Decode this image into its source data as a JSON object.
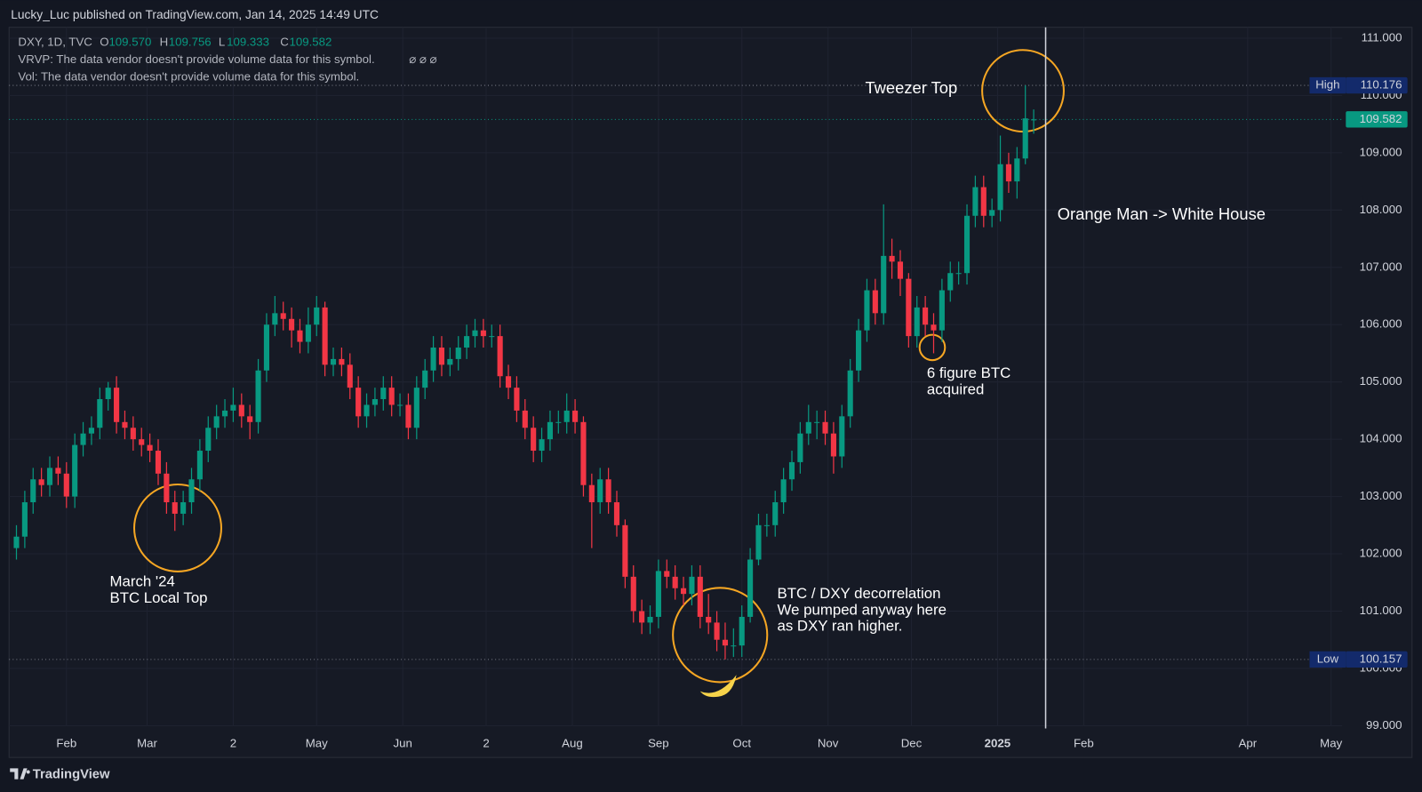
{
  "page": {
    "header": "Lucky_Luc published on TradingView.com, Jan 14, 2025 14:49 UTC",
    "brand": "TradingView"
  },
  "chart_data": {
    "type": "candlestick",
    "legend": {
      "symbol": "DXY, 1D, TVC",
      "o_label": "O",
      "o": "109.570",
      "h_label": "H",
      "h": "109.756",
      "l_label": "L",
      "l": "109.333",
      "c_label": "C",
      "c": "109.582",
      "vrvp": "VRVP: The data vendor doesn't provide volume data for this symbol.",
      "vrvp_icons": "⌀ ⌀ ⌀",
      "vol": "Vol: The data vendor doesn't provide volume data for this symbol."
    },
    "annotations": [
      "Tweezer Top",
      "Orange Man -> White House",
      "6 figure BTC",
      "acquired",
      "March '24",
      "BTC Local Top",
      "BTC / DXY decorrelation",
      "We pumped anyway here",
      "as DXY ran higher."
    ],
    "up_color": "#089981",
    "down_color": "#f23645",
    "x": [
      13,
      16,
      19,
      22,
      25,
      28,
      31,
      34,
      37,
      40,
      43,
      46,
      49,
      52,
      55,
      58,
      61,
      64,
      67,
      70,
      73,
      76,
      79,
      82,
      85,
      88,
      91,
      94,
      97,
      100,
      103,
      106,
      109,
      112,
      115,
      118,
      121,
      124,
      127,
      130,
      133,
      136,
      139,
      142,
      145,
      148,
      151,
      154,
      157,
      160,
      163,
      166,
      169,
      172,
      175,
      178,
      181,
      184,
      187,
      190,
      193,
      196,
      199,
      202,
      205,
      208,
      211,
      214,
      217,
      220,
      223,
      226,
      229,
      232,
      235,
      238,
      241,
      244,
      247,
      250,
      253,
      256,
      259,
      262,
      265,
      268,
      271,
      274,
      277,
      280,
      283,
      286,
      289,
      292,
      295,
      298,
      301,
      304,
      307,
      310,
      313,
      316,
      319,
      322,
      325,
      328,
      331,
      334,
      337,
      340,
      343,
      346,
      349,
      352,
      355,
      358,
      361,
      364,
      367,
      370,
      373,
      376,
      379
    ],
    "open": [
      102.1,
      102.3,
      102.9,
      103.3,
      103.2,
      103.5,
      103.4,
      103.0,
      103.9,
      104.1,
      104.2,
      104.7,
      104.9,
      104.3,
      104.2,
      104.0,
      103.9,
      103.8,
      103.4,
      102.9,
      102.7,
      102.9,
      103.3,
      103.8,
      104.2,
      104.4,
      104.5,
      104.6,
      104.4,
      104.3,
      105.2,
      106.0,
      106.2,
      106.1,
      105.9,
      105.7,
      106.0,
      106.3,
      105.3,
      105.4,
      105.3,
      104.9,
      104.4,
      104.6,
      104.7,
      104.9,
      104.6,
      104.6,
      104.2,
      104.9,
      105.2,
      105.6,
      105.3,
      105.4,
      105.6,
      105.8,
      105.9,
      105.8,
      105.8,
      105.1,
      104.9,
      104.5,
      104.2,
      103.8,
      104.0,
      104.3,
      104.3,
      104.5,
      104.3,
      103.2,
      102.9,
      103.3,
      102.9,
      102.5,
      101.6,
      101.0,
      100.8,
      100.9,
      101.7,
      101.6,
      101.4,
      101.3,
      101.6,
      100.9,
      100.8,
      100.5,
      100.4,
      100.4,
      100.9,
      101.9,
      102.5,
      102.5,
      102.9,
      103.3,
      103.6,
      104.1,
      104.3,
      104.3,
      104.1,
      103.7,
      104.4,
      105.2,
      105.9,
      106.6,
      106.2,
      107.2,
      107.1,
      106.8,
      105.8,
      106.3,
      106.0,
      105.9,
      106.6,
      106.9,
      106.9,
      107.9,
      108.4,
      107.9,
      108.0,
      108.8,
      108.5,
      108.9,
      109.57
    ],
    "high": [
      102.5,
      103.1,
      103.5,
      103.5,
      103.7,
      103.7,
      103.6,
      104.1,
      104.3,
      104.4,
      104.9,
      105.0,
      105.1,
      104.5,
      104.4,
      104.2,
      104.1,
      104.0,
      103.6,
      103.1,
      103.1,
      103.5,
      104.0,
      104.4,
      104.6,
      104.7,
      104.9,
      104.8,
      104.6,
      105.4,
      106.2,
      106.5,
      106.4,
      106.3,
      106.1,
      106.3,
      106.5,
      106.4,
      105.6,
      105.6,
      105.5,
      105.1,
      104.8,
      104.9,
      105.1,
      105.1,
      104.8,
      104.8,
      105.1,
      105.4,
      105.8,
      105.8,
      105.6,
      105.8,
      106.0,
      106.1,
      106.1,
      106.0,
      106.0,
      105.3,
      105.1,
      104.7,
      104.4,
      104.2,
      104.5,
      104.5,
      104.8,
      104.7,
      104.4,
      103.4,
      103.5,
      103.5,
      103.1,
      102.6,
      101.8,
      101.2,
      101.1,
      101.9,
      101.9,
      101.8,
      101.6,
      101.8,
      101.8,
      101.3,
      101.0,
      100.8,
      100.7,
      101.1,
      102.1,
      102.7,
      102.7,
      103.1,
      103.5,
      103.8,
      104.3,
      104.6,
      104.5,
      104.5,
      104.3,
      104.6,
      105.4,
      106.1,
      106.8,
      106.8,
      108.1,
      107.5,
      107.3,
      106.9,
      106.5,
      106.5,
      106.2,
      106.8,
      107.1,
      107.1,
      108.1,
      108.6,
      108.6,
      108.2,
      109.3,
      109.0,
      109.1,
      110.176,
      109.756
    ],
    "low": [
      101.9,
      102.1,
      102.7,
      103.0,
      103.0,
      103.2,
      102.8,
      102.8,
      103.7,
      103.9,
      104.0,
      104.5,
      104.1,
      104.0,
      103.8,
      103.7,
      103.6,
      103.2,
      102.7,
      102.4,
      102.5,
      102.7,
      103.1,
      103.6,
      104.0,
      104.2,
      104.3,
      104.2,
      104.0,
      104.1,
      105.0,
      105.8,
      105.9,
      105.6,
      105.5,
      105.5,
      105.8,
      105.1,
      105.1,
      105.1,
      104.7,
      104.2,
      104.2,
      104.4,
      104.5,
      104.4,
      104.4,
      104.0,
      104.0,
      104.7,
      105.0,
      105.1,
      105.1,
      105.2,
      105.4,
      105.6,
      105.6,
      105.6,
      104.9,
      104.7,
      104.3,
      104.0,
      103.6,
      103.6,
      103.8,
      104.1,
      104.1,
      104.1,
      103.0,
      102.1,
      102.7,
      102.7,
      102.3,
      101.4,
      100.8,
      100.6,
      100.6,
      100.7,
      101.4,
      101.2,
      101.1,
      101.1,
      100.7,
      100.6,
      100.3,
      100.157,
      100.2,
      100.2,
      100.8,
      101.8,
      102.3,
      102.3,
      102.7,
      103.1,
      103.4,
      103.9,
      104.0,
      103.9,
      103.4,
      103.5,
      104.2,
      105.0,
      105.7,
      106.0,
      106.0,
      106.8,
      106.5,
      105.6,
      105.6,
      105.8,
      105.5,
      105.7,
      106.4,
      106.7,
      106.7,
      107.7,
      107.7,
      107.7,
      107.8,
      108.3,
      108.2,
      108.8,
      109.333
    ],
    "close": [
      102.3,
      102.9,
      103.3,
      103.2,
      103.5,
      103.4,
      103.0,
      103.9,
      104.1,
      104.2,
      104.7,
      104.9,
      104.3,
      104.2,
      104.0,
      103.9,
      103.8,
      103.4,
      102.9,
      102.7,
      102.9,
      103.3,
      103.8,
      104.2,
      104.4,
      104.5,
      104.6,
      104.4,
      104.3,
      105.2,
      106.0,
      106.2,
      106.1,
      105.9,
      105.7,
      106.0,
      106.3,
      105.3,
      105.4,
      105.3,
      104.9,
      104.4,
      104.6,
      104.7,
      104.9,
      104.6,
      104.6,
      104.2,
      104.9,
      105.2,
      105.6,
      105.3,
      105.4,
      105.6,
      105.8,
      105.9,
      105.8,
      105.8,
      105.1,
      104.9,
      104.5,
      104.2,
      103.8,
      104.0,
      104.3,
      104.3,
      104.5,
      104.3,
      103.2,
      102.9,
      103.3,
      102.9,
      102.5,
      101.6,
      101.0,
      100.8,
      100.9,
      101.7,
      101.6,
      101.4,
      101.3,
      101.6,
      100.9,
      100.8,
      100.5,
      100.4,
      100.4,
      100.9,
      101.9,
      102.5,
      102.5,
      102.9,
      103.3,
      103.6,
      104.1,
      104.3,
      104.3,
      104.1,
      103.7,
      104.4,
      105.2,
      105.9,
      106.6,
      106.2,
      107.2,
      107.1,
      106.8,
      105.8,
      106.3,
      106.0,
      105.9,
      106.6,
      106.9,
      106.9,
      107.9,
      108.4,
      107.9,
      108.0,
      108.8,
      108.5,
      108.9,
      109.6,
      109.582
    ],
    "xlim": [
      11,
      490
    ],
    "ylim": [
      99,
      111
    ],
    "xticks": [
      {
        "value": 31,
        "label": "Feb"
      },
      {
        "value": 60,
        "label": "Mar"
      },
      {
        "value": 91,
        "label": "2"
      },
      {
        "value": 121,
        "label": "May"
      },
      {
        "value": 152,
        "label": "Jun"
      },
      {
        "value": 182,
        "label": "2"
      },
      {
        "value": 213,
        "label": "Aug"
      },
      {
        "value": 244,
        "label": "Sep"
      },
      {
        "value": 274,
        "label": "Oct"
      },
      {
        "value": 305,
        "label": "Nov"
      },
      {
        "value": 335,
        "label": "Dec"
      },
      {
        "value": 366,
        "label": "2025"
      },
      {
        "value": 397,
        "label": "Feb"
      },
      {
        "value": 456,
        "label": "Apr"
      },
      {
        "value": 486,
        "label": "May"
      }
    ],
    "yticks": [
      {
        "value": 99,
        "label": "99.000"
      },
      {
        "value": 100,
        "label": "100.000"
      },
      {
        "value": 101,
        "label": "101.000"
      },
      {
        "value": 102,
        "label": "102.000"
      },
      {
        "value": 103,
        "label": "103.000"
      },
      {
        "value": 104,
        "label": "104.000"
      },
      {
        "value": 105,
        "label": "105.000"
      },
      {
        "value": 106,
        "label": "106.000"
      },
      {
        "value": 107,
        "label": "107.000"
      },
      {
        "value": 108,
        "label": "108.000"
      },
      {
        "value": 109,
        "label": "109.000"
      },
      {
        "value": 110,
        "label": "110.000"
      },
      {
        "value": 111,
        "label": "111.000"
      }
    ],
    "grid": true,
    "price_lines": [
      {
        "label": "High",
        "value": 110.176
      },
      {
        "value": 109.582
      },
      {
        "label": "Low",
        "value": 100.157
      }
    ]
  }
}
